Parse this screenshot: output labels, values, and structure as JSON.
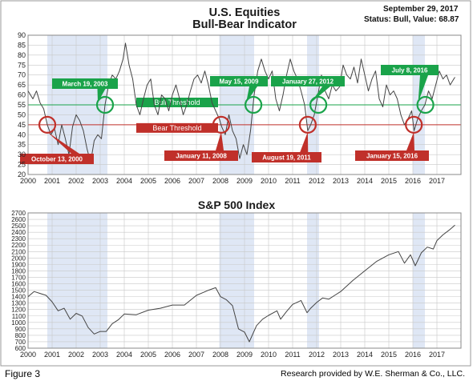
{
  "figure_label": "Figure 3",
  "credit": "Research provided by W.E. Sherman & Co., LLC.",
  "top_panel": {
    "title_line1": "U.S. Equities",
    "title_line2": "Bull-Bear Indicator",
    "status_date": "September 29, 2017",
    "status_text": "Status: Bull, Value: 68.87"
  },
  "bottom_panel": {
    "title": "S&P 500 Index"
  },
  "colors": {
    "shade": "#dfe7f5",
    "line": "#444444",
    "bull": "#1aa34a",
    "bear": "#c0302a",
    "grid": "#c8c8c8"
  },
  "chart_data": [
    {
      "type": "line",
      "title": "U.S. Equities Bull-Bear Indicator",
      "ylim": [
        20,
        90
      ],
      "yticks": [
        20,
        25,
        30,
        35,
        40,
        45,
        50,
        55,
        60,
        65,
        70,
        75,
        80,
        85,
        90
      ],
      "xlim": [
        2000,
        2018
      ],
      "xticks": [
        "2000",
        "2001",
        "2002",
        "2003",
        "2004",
        "2005",
        "2006",
        "2007",
        "2008",
        "2009",
        "2010",
        "2011",
        "2012",
        "2013",
        "2014",
        "2015",
        "2016",
        "2017"
      ],
      "grid": true,
      "shaded_periods": [
        [
          2000.8,
          2003.3
        ],
        [
          2007.95,
          2009.4
        ],
        [
          2011.6,
          2012.1
        ],
        [
          2016.0,
          2016.5
        ]
      ],
      "thresholds": [
        {
          "name": "Bull Threshold",
          "value": 55
        },
        {
          "name": "Bear Threshold",
          "value": 45
        }
      ],
      "annotations": [
        {
          "label": "March 19, 2003",
          "x": 2003.2,
          "y": 55,
          "kind": "bull"
        },
        {
          "label": "May 15, 2009",
          "x": 2009.37,
          "y": 55,
          "kind": "bull"
        },
        {
          "label": "January 27, 2012",
          "x": 2012.07,
          "y": 55,
          "kind": "bull"
        },
        {
          "label": "July 8, 2016",
          "x": 2016.52,
          "y": 55,
          "kind": "bull"
        },
        {
          "label": "October 13, 2000",
          "x": 2000.8,
          "y": 45,
          "kind": "bear"
        },
        {
          "label": "January 11, 2008",
          "x": 2008.03,
          "y": 45,
          "kind": "bear"
        },
        {
          "label": "August 19, 2011",
          "x": 2011.63,
          "y": 45,
          "kind": "bear"
        },
        {
          "label": "January 15, 2016",
          "x": 2016.04,
          "y": 45,
          "kind": "bear"
        }
      ],
      "series": [
        {
          "values": [
            [
              2000.0,
              62
            ],
            [
              2000.2,
              58
            ],
            [
              2000.35,
              62
            ],
            [
              2000.5,
              56
            ],
            [
              2000.65,
              53
            ],
            [
              2000.8,
              45
            ],
            [
              2000.95,
              40
            ],
            [
              2001.1,
              43
            ],
            [
              2001.25,
              35
            ],
            [
              2001.4,
              45
            ],
            [
              2001.55,
              38
            ],
            [
              2001.7,
              30
            ],
            [
              2001.85,
              44
            ],
            [
              2002.0,
              50
            ],
            [
              2002.15,
              47
            ],
            [
              2002.3,
              42
            ],
            [
              2002.45,
              33
            ],
            [
              2002.6,
              26
            ],
            [
              2002.75,
              37
            ],
            [
              2002.9,
              40
            ],
            [
              2003.05,
              38
            ],
            [
              2003.2,
              55
            ],
            [
              2003.35,
              65
            ],
            [
              2003.5,
              70
            ],
            [
              2003.65,
              68
            ],
            [
              2003.8,
              72
            ],
            [
              2003.95,
              78
            ],
            [
              2004.05,
              86
            ],
            [
              2004.2,
              75
            ],
            [
              2004.35,
              68
            ],
            [
              2004.5,
              55
            ],
            [
              2004.65,
              50
            ],
            [
              2004.8,
              58
            ],
            [
              2004.95,
              65
            ],
            [
              2005.1,
              68
            ],
            [
              2005.25,
              55
            ],
            [
              2005.4,
              50
            ],
            [
              2005.55,
              60
            ],
            [
              2005.7,
              58
            ],
            [
              2005.85,
              52
            ],
            [
              2006.0,
              60
            ],
            [
              2006.15,
              65
            ],
            [
              2006.3,
              58
            ],
            [
              2006.45,
              50
            ],
            [
              2006.6,
              55
            ],
            [
              2006.75,
              62
            ],
            [
              2006.9,
              68
            ],
            [
              2007.05,
              70
            ],
            [
              2007.2,
              66
            ],
            [
              2007.35,
              72
            ],
            [
              2007.5,
              65
            ],
            [
              2007.65,
              56
            ],
            [
              2007.8,
              52
            ],
            [
              2007.95,
              48
            ],
            [
              2008.05,
              44
            ],
            [
              2008.2,
              40
            ],
            [
              2008.35,
              50
            ],
            [
              2008.5,
              42
            ],
            [
              2008.65,
              38
            ],
            [
              2008.8,
              28
            ],
            [
              2008.95,
              35
            ],
            [
              2009.1,
              30
            ],
            [
              2009.25,
              42
            ],
            [
              2009.4,
              60
            ],
            [
              2009.55,
              72
            ],
            [
              2009.7,
              78
            ],
            [
              2009.85,
              72
            ],
            [
              2010.0,
              68
            ],
            [
              2010.15,
              72
            ],
            [
              2010.3,
              58
            ],
            [
              2010.45,
              52
            ],
            [
              2010.6,
              60
            ],
            [
              2010.75,
              70
            ],
            [
              2010.9,
              78
            ],
            [
              2011.05,
              72
            ],
            [
              2011.2,
              68
            ],
            [
              2011.35,
              62
            ],
            [
              2011.5,
              55
            ],
            [
              2011.63,
              42
            ],
            [
              2011.75,
              45
            ],
            [
              2011.9,
              50
            ],
            [
              2012.05,
              60
            ],
            [
              2012.2,
              70
            ],
            [
              2012.35,
              62
            ],
            [
              2012.5,
              58
            ],
            [
              2012.65,
              65
            ],
            [
              2012.8,
              62
            ],
            [
              2012.95,
              64
            ],
            [
              2013.1,
              75
            ],
            [
              2013.25,
              70
            ],
            [
              2013.4,
              68
            ],
            [
              2013.55,
              74
            ],
            [
              2013.7,
              66
            ],
            [
              2013.85,
              78
            ],
            [
              2014.0,
              70
            ],
            [
              2014.15,
              62
            ],
            [
              2014.3,
              68
            ],
            [
              2014.45,
              72
            ],
            [
              2014.6,
              58
            ],
            [
              2014.75,
              54
            ],
            [
              2014.9,
              65
            ],
            [
              2015.05,
              60
            ],
            [
              2015.2,
              62
            ],
            [
              2015.35,
              58
            ],
            [
              2015.5,
              50
            ],
            [
              2015.65,
              45
            ],
            [
              2015.8,
              48
            ],
            [
              2015.95,
              52
            ],
            [
              2016.05,
              42
            ],
            [
              2016.2,
              48
            ],
            [
              2016.35,
              52
            ],
            [
              2016.5,
              55
            ],
            [
              2016.65,
              62
            ],
            [
              2016.8,
              58
            ],
            [
              2016.95,
              65
            ],
            [
              2017.1,
              72
            ],
            [
              2017.25,
              68
            ],
            [
              2017.4,
              70
            ],
            [
              2017.55,
              65
            ],
            [
              2017.7,
              68
            ],
            [
              2017.75,
              68.87
            ]
          ]
        }
      ]
    },
    {
      "type": "line",
      "title": "S&P 500 Index",
      "ylim": [
        600,
        2700
      ],
      "yticks": [
        600,
        700,
        800,
        900,
        1000,
        1100,
        1200,
        1300,
        1400,
        1500,
        1600,
        1700,
        1800,
        1900,
        2000,
        2100,
        2200,
        2300,
        2400,
        2500,
        2600,
        2700
      ],
      "xlim": [
        2000,
        2018
      ],
      "xticks": [
        "2000",
        "2001",
        "2002",
        "2003",
        "2004",
        "2005",
        "2006",
        "2007",
        "2008",
        "2009",
        "2010",
        "2011",
        "2012",
        "2013",
        "2014",
        "2015",
        "2016",
        "2017"
      ],
      "grid": true,
      "shaded_periods": [
        [
          2000.8,
          2003.3
        ],
        [
          2007.95,
          2009.4
        ],
        [
          2011.6,
          2012.1
        ],
        [
          2016.0,
          2016.5
        ]
      ],
      "series": [
        {
          "values": [
            [
              2000.0,
              1400
            ],
            [
              2000.25,
              1480
            ],
            [
              2000.5,
              1450
            ],
            [
              2000.75,
              1420
            ],
            [
              2001.0,
              1320
            ],
            [
              2001.25,
              1180
            ],
            [
              2001.5,
              1220
            ],
            [
              2001.75,
              1050
            ],
            [
              2002.0,
              1140
            ],
            [
              2002.25,
              1100
            ],
            [
              2002.5,
              920
            ],
            [
              2002.75,
              820
            ],
            [
              2003.0,
              860
            ],
            [
              2003.25,
              860
            ],
            [
              2003.5,
              980
            ],
            [
              2003.75,
              1040
            ],
            [
              2004.0,
              1130
            ],
            [
              2004.5,
              1120
            ],
            [
              2005.0,
              1190
            ],
            [
              2005.5,
              1220
            ],
            [
              2006.0,
              1270
            ],
            [
              2006.5,
              1270
            ],
            [
              2007.0,
              1420
            ],
            [
              2007.5,
              1500
            ],
            [
              2007.8,
              1540
            ],
            [
              2008.0,
              1400
            ],
            [
              2008.25,
              1350
            ],
            [
              2008.5,
              1260
            ],
            [
              2008.75,
              900
            ],
            [
              2009.0,
              850
            ],
            [
              2009.2,
              700
            ],
            [
              2009.5,
              950
            ],
            [
              2009.75,
              1050
            ],
            [
              2010.0,
              1110
            ],
            [
              2010.35,
              1180
            ],
            [
              2010.5,
              1050
            ],
            [
              2010.75,
              1170
            ],
            [
              2011.0,
              1280
            ],
            [
              2011.35,
              1340
            ],
            [
              2011.6,
              1150
            ],
            [
              2011.75,
              1220
            ],
            [
              2012.0,
              1310
            ],
            [
              2012.25,
              1380
            ],
            [
              2012.5,
              1360
            ],
            [
              2012.75,
              1420
            ],
            [
              2013.0,
              1480
            ],
            [
              2013.5,
              1650
            ],
            [
              2014.0,
              1800
            ],
            [
              2014.5,
              1950
            ],
            [
              2015.0,
              2050
            ],
            [
              2015.4,
              2100
            ],
            [
              2015.65,
              1920
            ],
            [
              2015.9,
              2050
            ],
            [
              2016.1,
              1880
            ],
            [
              2016.35,
              2080
            ],
            [
              2016.6,
              2170
            ],
            [
              2016.85,
              2140
            ],
            [
              2017.0,
              2270
            ],
            [
              2017.25,
              2360
            ],
            [
              2017.5,
              2430
            ],
            [
              2017.75,
              2510
            ]
          ]
        }
      ]
    }
  ]
}
